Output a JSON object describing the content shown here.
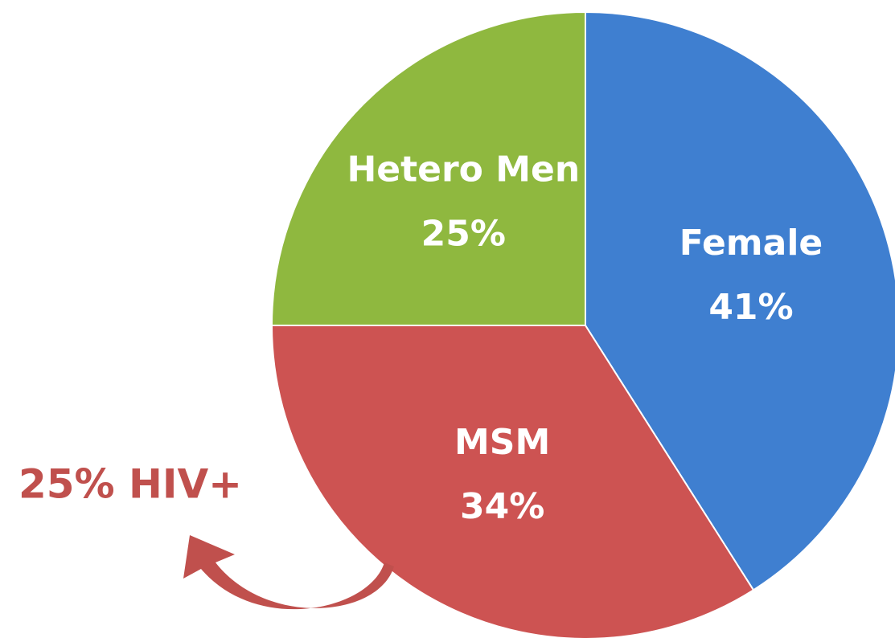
{
  "chart_data": {
    "type": "pie",
    "categories": [
      "Female",
      "MSM",
      "Hetero Men"
    ],
    "values": [
      41,
      34,
      25
    ],
    "value_labels": [
      "41%",
      "34%",
      "25%"
    ],
    "colors": [
      "#3f7fd0",
      "#cd5352",
      "#8fb83f"
    ],
    "annotation": "25% HIV+"
  }
}
